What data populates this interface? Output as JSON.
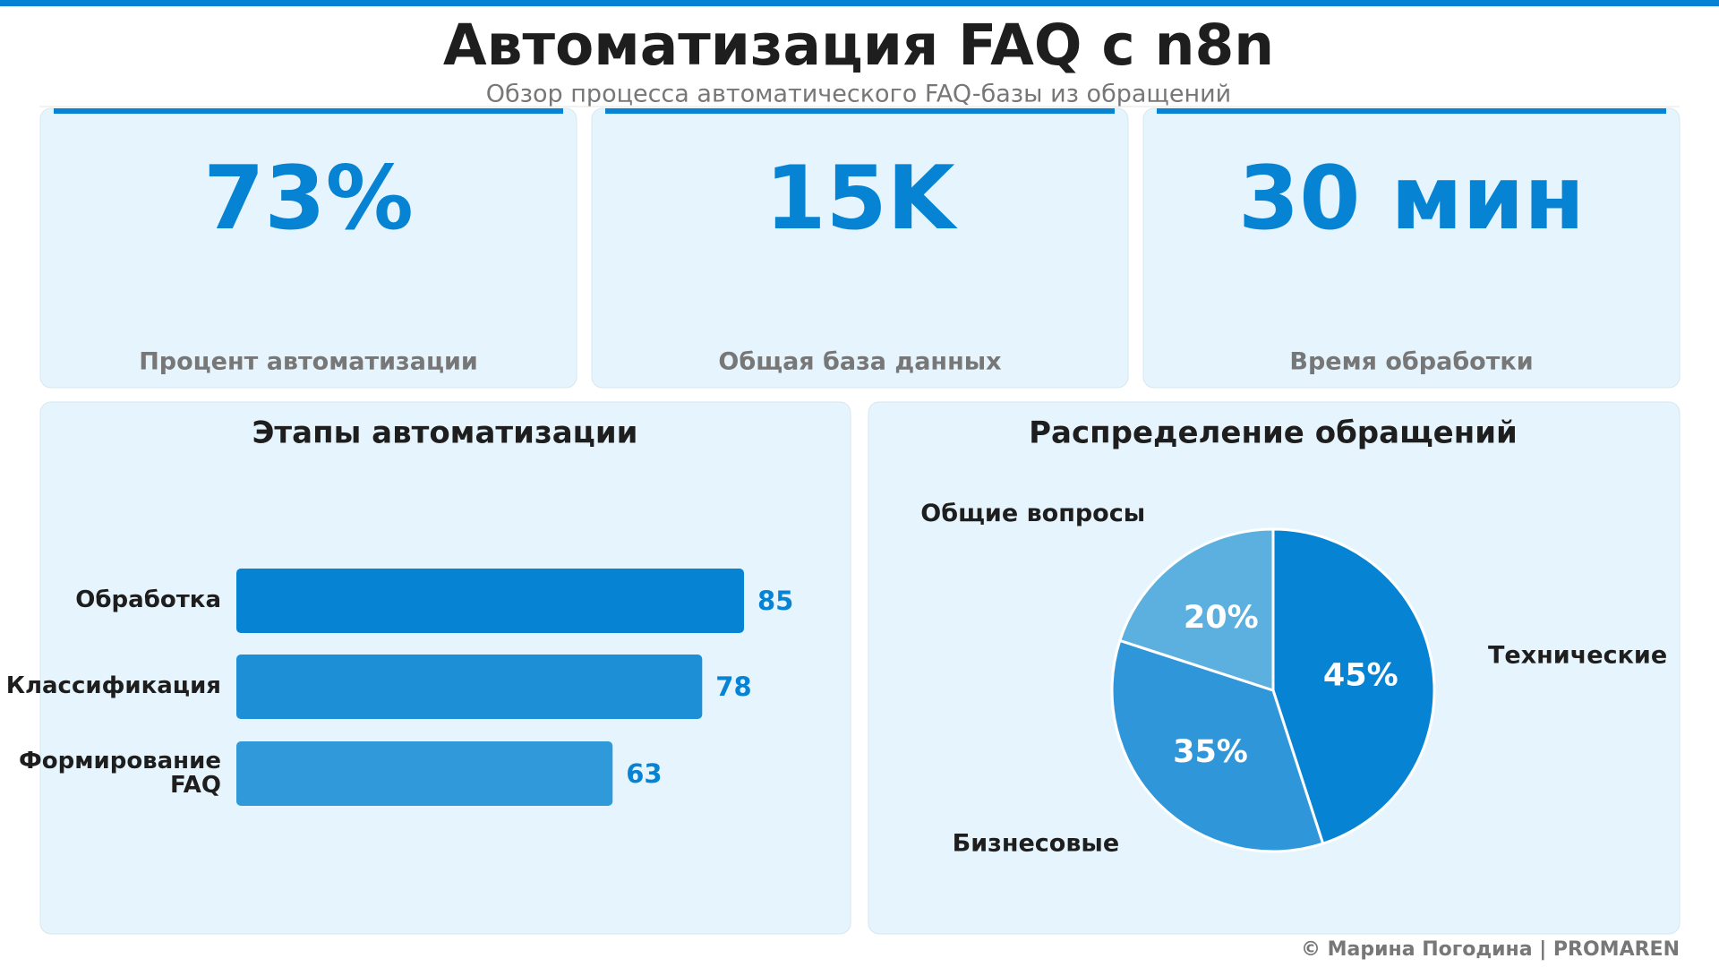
{
  "header": {
    "title": "Автоматизация FAQ с n8n",
    "subtitle": "Обзор процесса автоматического FAQ-базы из обращений"
  },
  "kpis": [
    {
      "value": "73%",
      "label": "Процент автоматизации"
    },
    {
      "value": "15K",
      "label": "Общая база данных"
    },
    {
      "value": "30 мин",
      "label": "Время обработки"
    }
  ],
  "chart_data": [
    {
      "type": "bar",
      "orientation": "horizontal",
      "title": "Этапы автоматизации",
      "categories": [
        "Обработка",
        "Классификация",
        "Формирование FAQ"
      ],
      "values": [
        85,
        78,
        63
      ],
      "colors": [
        "#0783d3",
        "#1c8fd7",
        "#3099da"
      ]
    },
    {
      "type": "pie",
      "title": "Распределение обращений",
      "categories": [
        "Технические",
        "Бизнесовые",
        "Общие вопросы"
      ],
      "values": [
        45,
        35,
        20
      ],
      "value_labels": [
        "45%",
        "35%",
        "20%"
      ],
      "colors": [
        "#0783d3",
        "#2f96da",
        "#5cb0e0"
      ]
    }
  ],
  "footer": "© Марина Погодина | PROMAREN"
}
